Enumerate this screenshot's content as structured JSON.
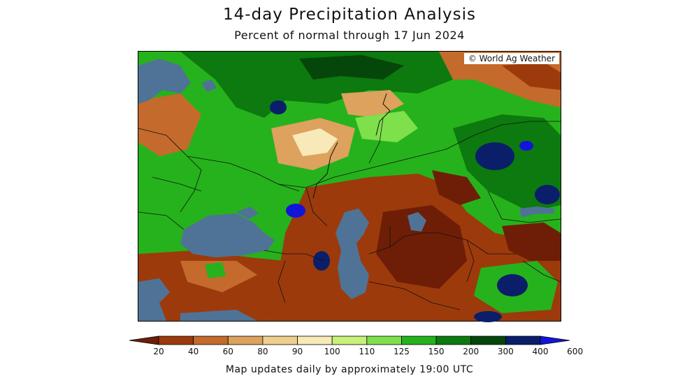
{
  "title": "14-day Precipitation Analysis",
  "subtitle": "Percent of normal through 17 Jun 2024",
  "credit": "© World Ag Weather",
  "footer": "Map updates daily by approximately 19:00 UTC",
  "legend": {
    "labels": [
      "20",
      "40",
      "60",
      "80",
      "90",
      "100",
      "110",
      "125",
      "150",
      "200",
      "300",
      "400",
      "600"
    ],
    "colors": [
      "#6e1e06",
      "#9c3a0c",
      "#c46a2c",
      "#dca25e",
      "#efcf8e",
      "#f7eab8",
      "#c8f07a",
      "#7ee04a",
      "#26b21c",
      "#0c7a0e",
      "#05460a",
      "#0a1e6a",
      "#1414d8"
    ]
  },
  "map_colors": {
    "water": "#4f7396",
    "border": "#111111"
  }
}
